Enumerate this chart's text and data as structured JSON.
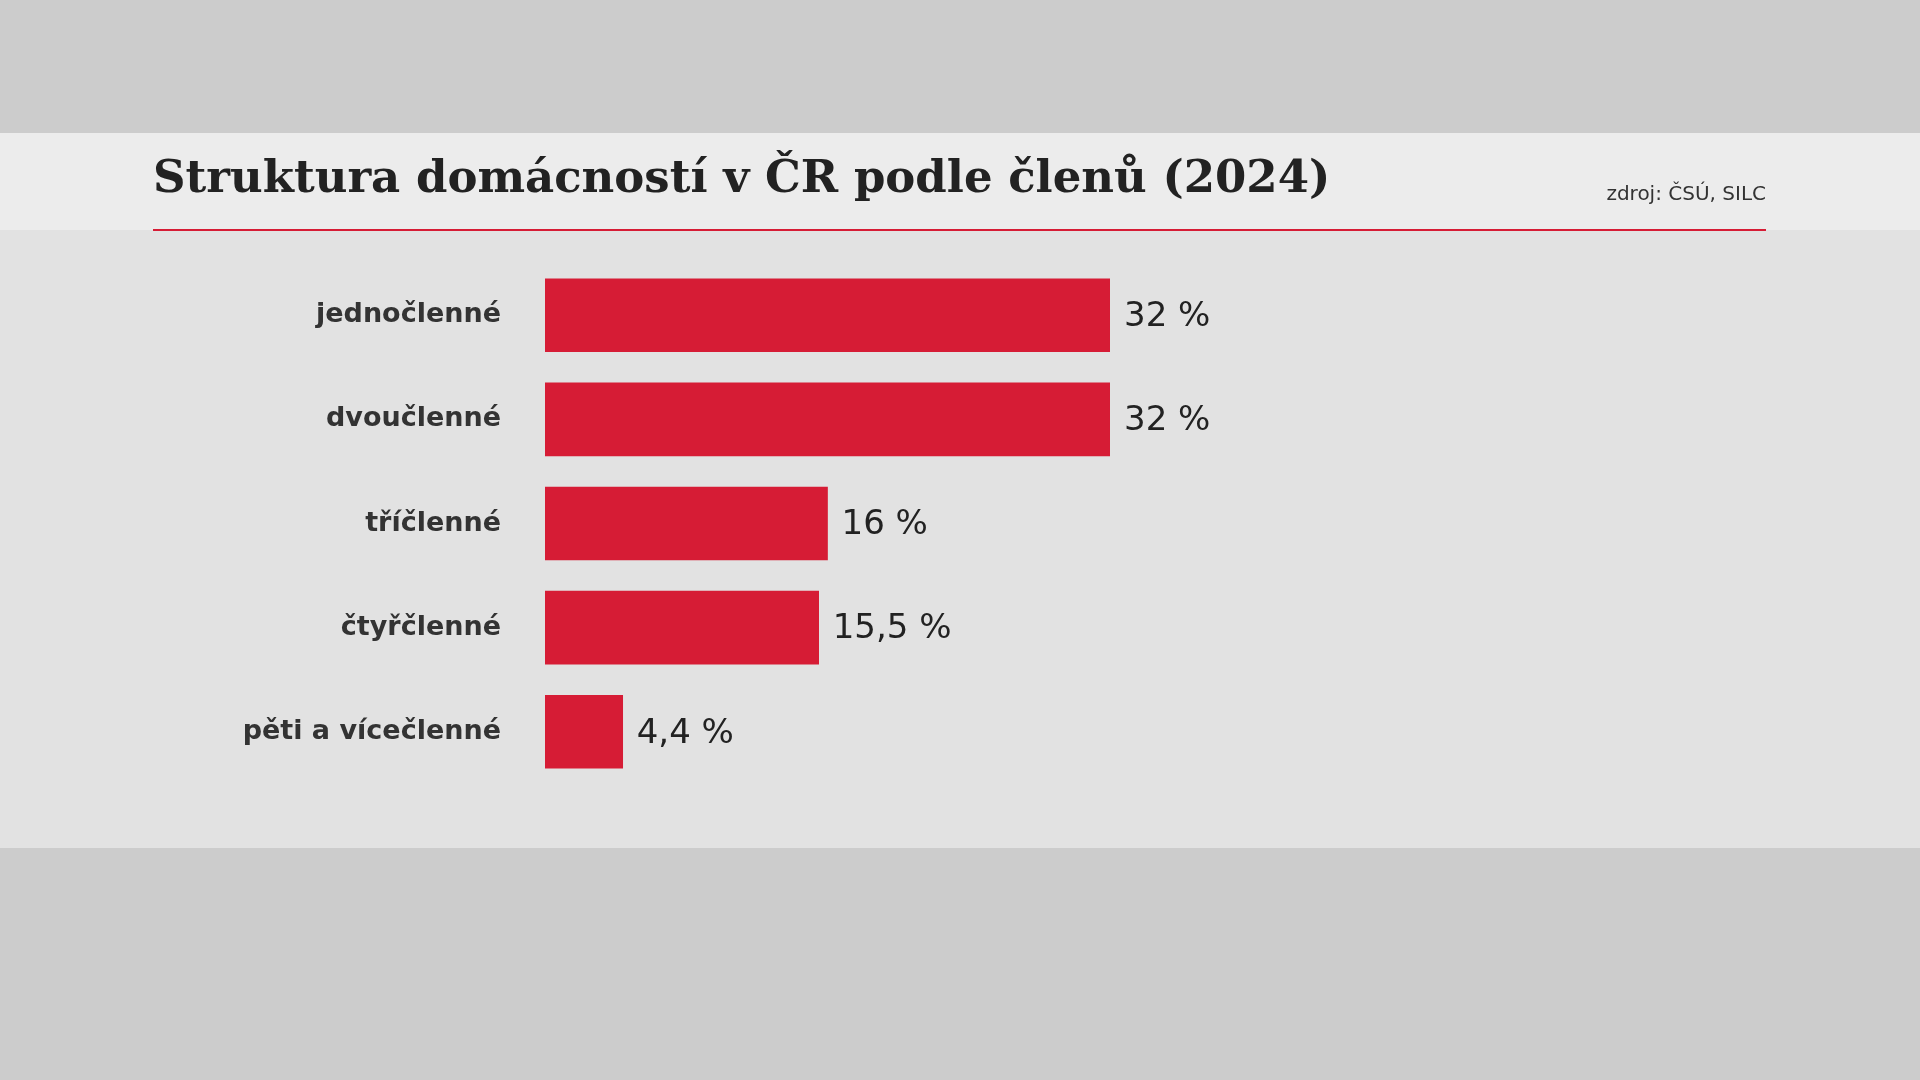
{
  "chart_data": {
    "type": "bar",
    "orientation": "horizontal",
    "title": "Struktura domácností v ČR podle členů (2024)",
    "annotations": [
      "zdroj: ČSÚ, SILC"
    ],
    "categories": [
      "jednočlenné",
      "dvoučlenné",
      "tříčlenné",
      "čtyřčlenné",
      "pěti a vícečlenné"
    ],
    "values": [
      32,
      32,
      16,
      15.5,
      4.4
    ],
    "color": "#d61c35",
    "value_labels": [
      "32 %",
      "32 %",
      "16 %",
      "15,5 %",
      "4,4 %"
    ],
    "legend": false
  }
}
